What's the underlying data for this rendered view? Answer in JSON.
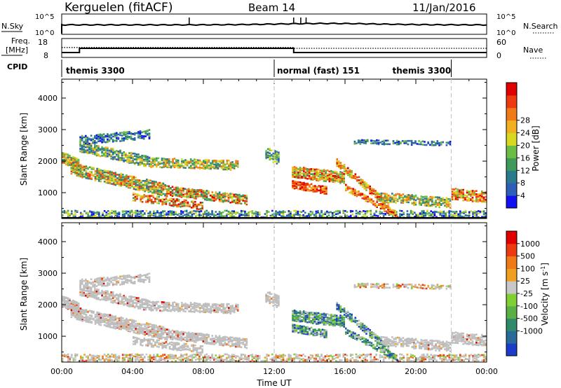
{
  "header": {
    "station": "Kerguelen (fitACF)",
    "beam": "Beam 14",
    "date": "11/Jan/2016"
  },
  "top_panels": {
    "nsky_label": "N.Sky",
    "nsky_ticks": [
      "10^5",
      "10^0"
    ],
    "nsearch_label": "N.Search",
    "nsearch_ticks": [
      "10^5",
      "10^0"
    ],
    "freq_label_line1": "Freq.",
    "freq_label_line2": "[MHz]",
    "freq_ticks": [
      "18",
      "8"
    ],
    "nave_label": "Nave",
    "nave_ticks": [
      "60",
      "0"
    ],
    "cpid_label": "CPID",
    "cpid_modes": [
      {
        "name": "themis 3300",
        "start_hour": 0.0,
        "end_hour": 12.0
      },
      {
        "name": "normal (fast) 151",
        "start_hour": 12.0,
        "end_hour": 22.0
      },
      {
        "name": "themis 3300",
        "start_hour": 22.0,
        "end_hour": 24.0
      }
    ],
    "freq_segments_mhz": [
      {
        "start_hour": 0.0,
        "end_hour": 1.0,
        "value": 10.5
      },
      {
        "start_hour": 1.0,
        "end_hour": 13.1,
        "value": 13.0
      },
      {
        "start_hour": 13.1,
        "end_hour": 24.0,
        "value": 10.5
      }
    ],
    "nave_segments": [
      {
        "start_hour": 0.0,
        "end_hour": 13.1,
        "value": 33
      },
      {
        "start_hour": 13.1,
        "end_hour": 24.0,
        "value": 30
      }
    ]
  },
  "chart_data": [
    {
      "type": "heatmap",
      "title": "Power",
      "ylabel": "Slant Range [km]",
      "xlabel": "",
      "x_ticks": [
        "00:00",
        "04:00",
        "08:00",
        "12:00",
        "16:00",
        "20:00",
        "00:00"
      ],
      "xlim_hours": [
        0,
        24
      ],
      "y_ticks": [
        1000,
        2000,
        3000,
        4000
      ],
      "ylim_km": [
        180,
        4600
      ],
      "colorbar_label": "Power [dB]",
      "colorbar_ticks": [
        4,
        8,
        12,
        16,
        20,
        24,
        28
      ],
      "colorbar_colors": [
        "#1010f0",
        "#2e5fb8",
        "#2a7a8c",
        "#3f9a5a",
        "#6bbd45",
        "#d8d820",
        "#f0b020",
        "#f07a18",
        "#ee3a10",
        "#e00000"
      ]
    },
    {
      "type": "heatmap",
      "title": "Velocity",
      "ylabel": "Slant Range [km]",
      "xlabel": "Time UT",
      "x_ticks": [
        "00:00",
        "04:00",
        "08:00",
        "12:00",
        "16:00",
        "20:00",
        "00:00"
      ],
      "xlim_hours": [
        0,
        24
      ],
      "y_ticks": [
        1000,
        2000,
        3000,
        4000
      ],
      "ylim_km": [
        180,
        4600
      ],
      "colorbar_label": "Velocity [m s",
      "colorbar_label_exp": "-1",
      "colorbar_label_end": "]",
      "colorbar_ticks": [
        "1000",
        "500",
        "100",
        "25",
        "-25",
        "-100",
        "-500",
        "-1000"
      ],
      "colorbar_colors": [
        "#1a3cc8",
        "#2a6a9a",
        "#2f8a6a",
        "#5ab045",
        "#80cf35",
        "#c8c8c8",
        "#f0a020",
        "#f07a18",
        "#ee3a10",
        "#e00000"
      ]
    }
  ],
  "colors": {
    "axis": "#000000",
    "dashed_marker": "#c8c8c8",
    "ground_scatter": "#bebebe"
  }
}
